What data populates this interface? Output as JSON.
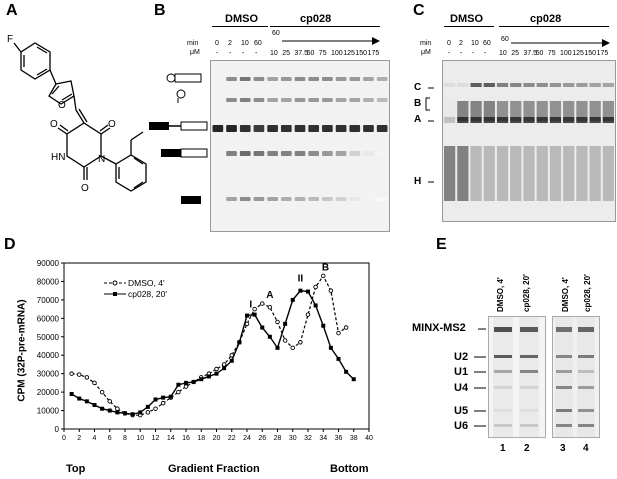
{
  "panels": {
    "a": {
      "letter": "A",
      "fluoro_label": "F",
      "oxo_labels": [
        "O",
        "O",
        "O"
      ],
      "imide_label": "HN",
      "nitrogen_label": "N",
      "furan_o": "O"
    },
    "b": {
      "letter": "B",
      "dmso_label": "DMSO",
      "cp_label": "cp028",
      "row1_head": "min",
      "row2_head": "μM",
      "dmso_times": [
        "0",
        "2",
        "10",
        "60"
      ],
      "dmso_conc": [
        "-",
        "-",
        "-",
        "-"
      ],
      "cp_time": "60",
      "cp_conc": [
        "10",
        "25",
        "37.5",
        "50",
        "75",
        "100",
        "125",
        "150",
        "175"
      ]
    },
    "c": {
      "letter": "C",
      "dmso_label": "DMSO",
      "cp_label": "cp028",
      "row1_head": "min",
      "row2_head": "μM",
      "dmso_times": [
        "0",
        "2",
        "10",
        "60"
      ],
      "dmso_conc": [
        "-",
        "-",
        "-",
        "-"
      ],
      "cp_time": "60",
      "cp_conc": [
        "10",
        "25",
        "37.5",
        "50",
        "75",
        "100",
        "125",
        "150",
        "175"
      ],
      "complex_labels": [
        "C",
        "B",
        "A",
        "H"
      ]
    },
    "d": {
      "letter": "D",
      "ylabel": "CPM (32P-pre-mRNA)",
      "xlabel": "Gradient Fraction",
      "x_left": "Top",
      "x_right": "Bottom",
      "peak_labels": [
        "I",
        "A",
        "II",
        "B"
      ]
    },
    "e": {
      "letter": "E",
      "lane_headers": [
        "DMSO, 4'",
        "cp028, 20'",
        "DMSO, 4'",
        "cp028, 20'"
      ],
      "band_labels": [
        "MINX-MS2",
        "U2",
        "U1",
        "U4",
        "U5",
        "U6"
      ],
      "lane_numbers": [
        "1",
        "2",
        "3",
        "4"
      ]
    }
  },
  "chart_data": {
    "type": "line",
    "ylim": [
      0,
      90000
    ],
    "xlim": [
      0,
      40
    ],
    "yticks": [
      0,
      10000,
      20000,
      30000,
      40000,
      50000,
      60000,
      70000,
      80000,
      90000
    ],
    "xticks": [
      0,
      2,
      4,
      6,
      8,
      10,
      12,
      14,
      16,
      18,
      20,
      22,
      24,
      26,
      28,
      30,
      32,
      34,
      36,
      38,
      40
    ],
    "legend_position": "top-left",
    "series": [
      {
        "name": "DMSO, 4'",
        "marker": "open-circle",
        "line": "dashed",
        "x": [
          1,
          2,
          3,
          4,
          5,
          6,
          7,
          8,
          9,
          10,
          11,
          12,
          13,
          14,
          15,
          16,
          17,
          18,
          19,
          20,
          21,
          22,
          23,
          24,
          25,
          26,
          27,
          28,
          29,
          30,
          31,
          32,
          33,
          34,
          35,
          36,
          37
        ],
        "y": [
          30000,
          29500,
          28000,
          25000,
          20000,
          15000,
          11000,
          8500,
          7500,
          7500,
          9000,
          11000,
          14000,
          17000,
          20000,
          23000,
          25500,
          28000,
          30000,
          32500,
          35000,
          40000,
          47000,
          57000,
          65000,
          68000,
          66000,
          58000,
          48000,
          44000,
          47000,
          62000,
          77000,
          83000,
          75000,
          52000,
          55000
        ]
      },
      {
        "name": "cp028, 20'",
        "marker": "filled-square",
        "line": "solid",
        "x": [
          1,
          2,
          3,
          4,
          5,
          6,
          7,
          8,
          9,
          10,
          11,
          12,
          13,
          14,
          15,
          16,
          17,
          18,
          19,
          20,
          21,
          22,
          23,
          24,
          25,
          26,
          27,
          28,
          29,
          30,
          31,
          32,
          33,
          34,
          35,
          36,
          37,
          38
        ],
        "y": [
          19000,
          16500,
          15000,
          13000,
          11000,
          10000,
          9000,
          8500,
          8000,
          9000,
          12000,
          16000,
          17000,
          17500,
          24000,
          25000,
          25500,
          27000,
          28500,
          30000,
          33000,
          37000,
          47000,
          61500,
          62000,
          55000,
          50000,
          44000,
          57000,
          70000,
          75000,
          74500,
          67000,
          56000,
          44000,
          38000,
          31000,
          27000
        ]
      }
    ]
  }
}
